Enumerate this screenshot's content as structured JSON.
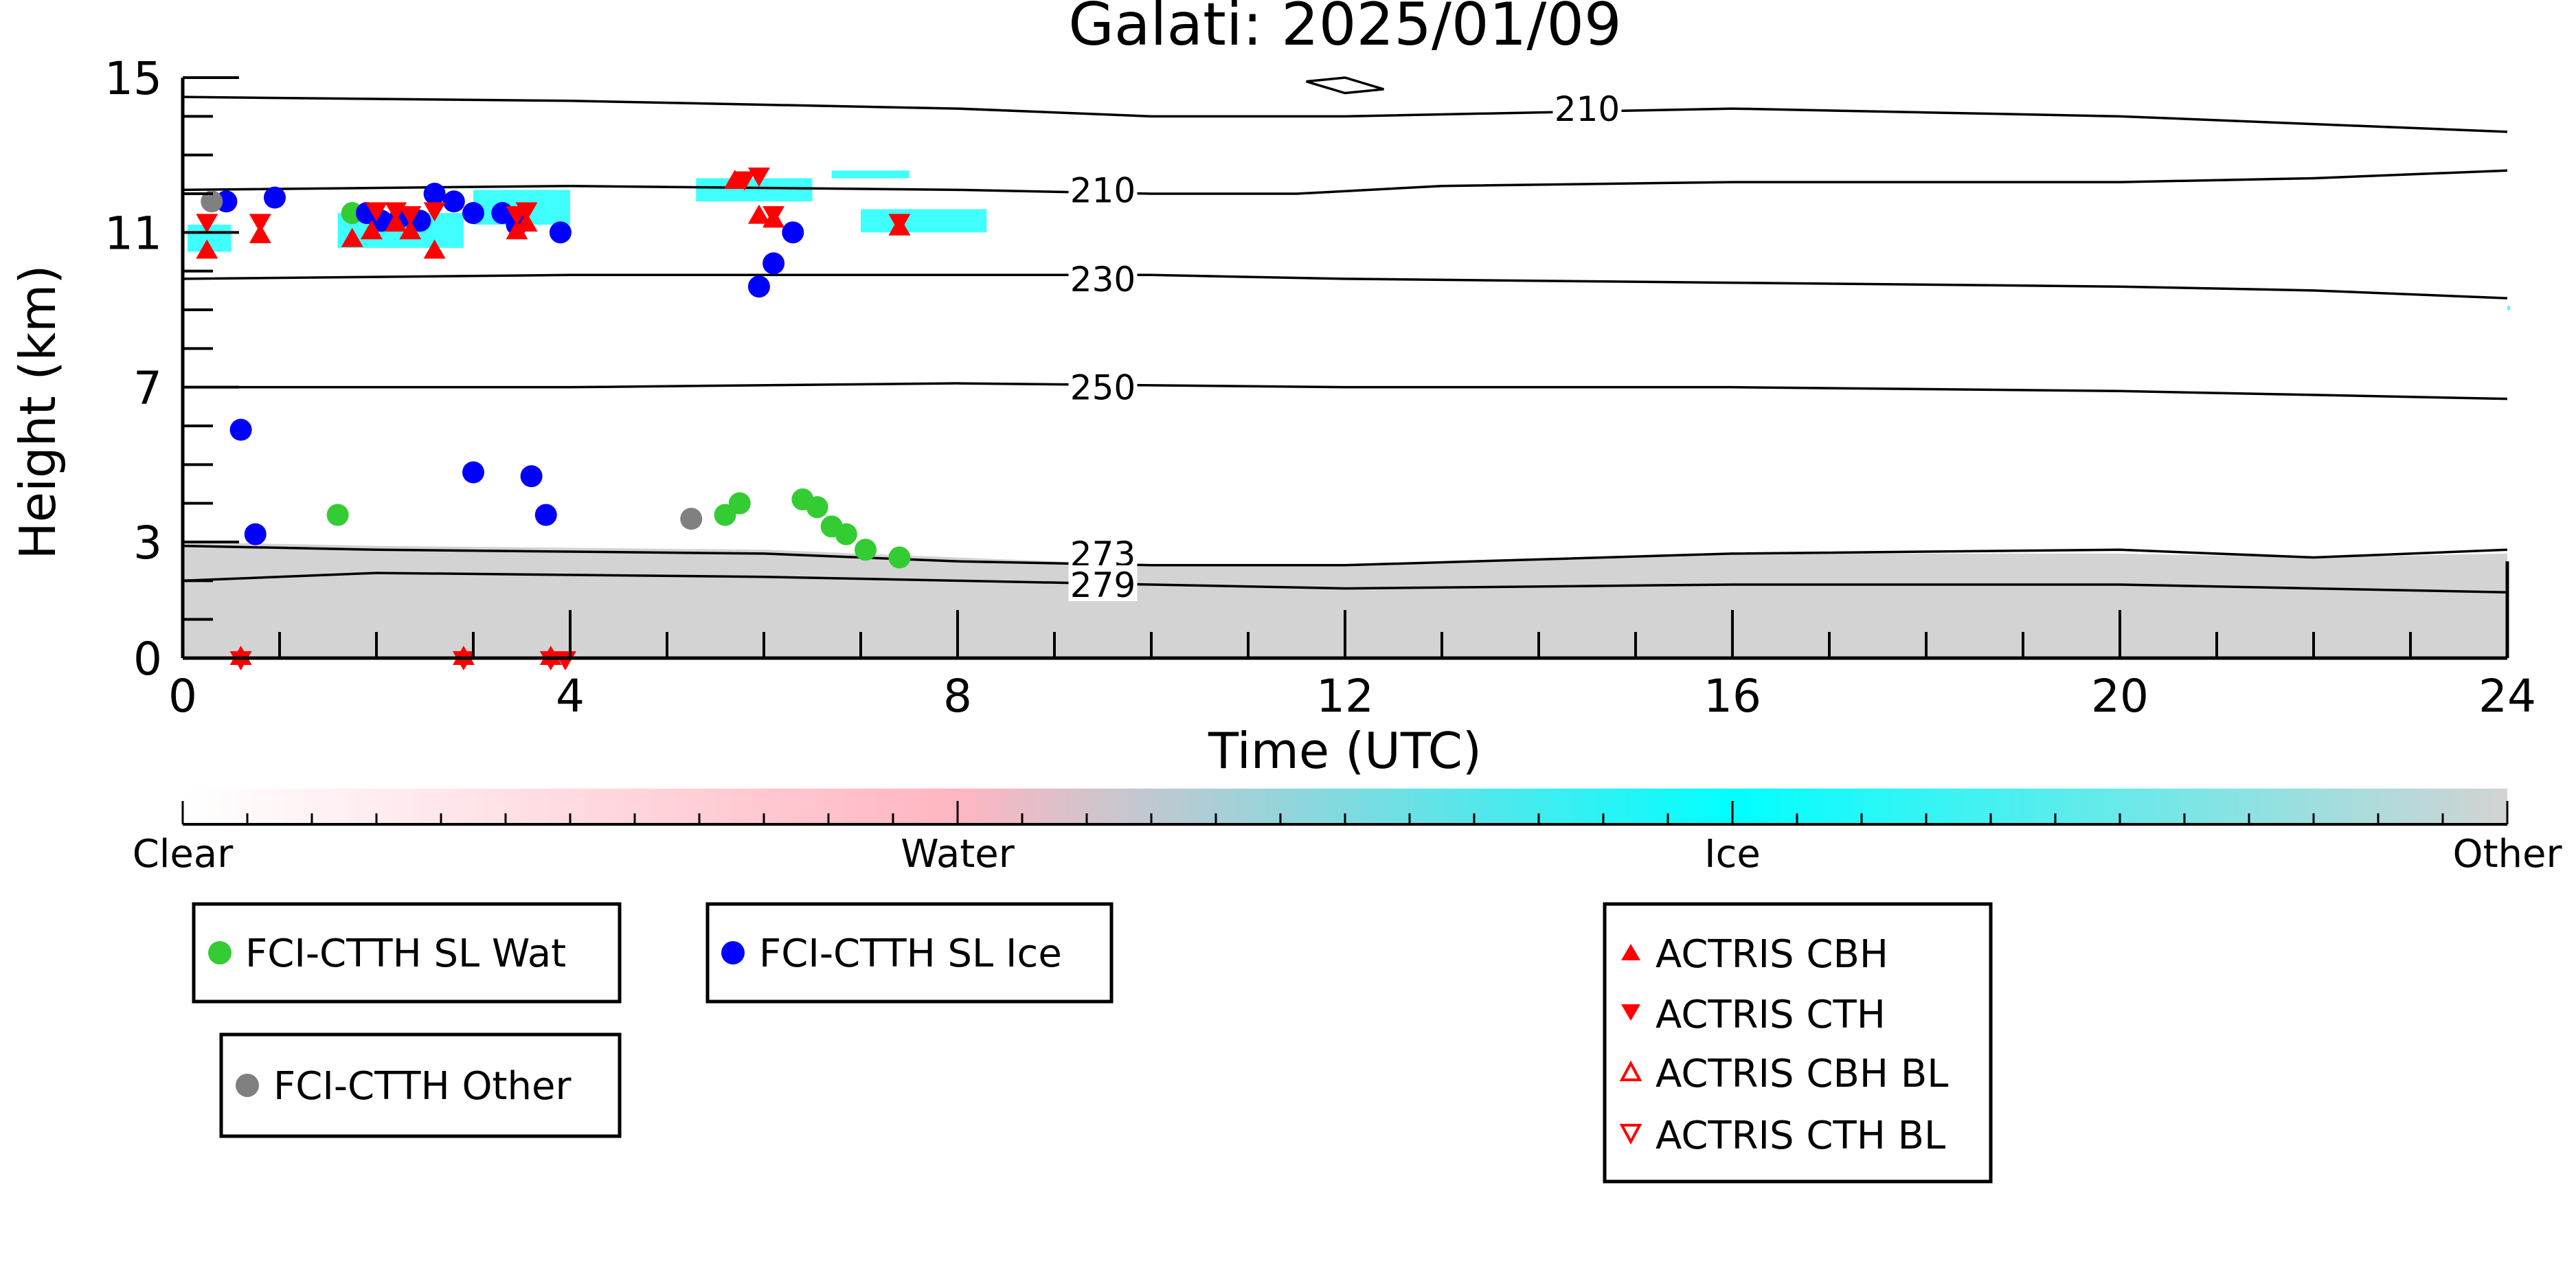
{
  "chart_data": {
    "type": "scatter",
    "title": "Galati: 2025/01/09",
    "xlabel": "Time (UTC)",
    "ylabel": "Height (km)",
    "xlim": [
      0,
      24
    ],
    "ylim": [
      0,
      15
    ],
    "x_ticks": [
      0,
      4,
      8,
      12,
      16,
      20,
      24
    ],
    "y_ticks": [
      0,
      3,
      7,
      11,
      15
    ],
    "grid": false,
    "contour_labels": [
      {
        "text": "210",
        "x": 14.5,
        "y": 14.2
      },
      {
        "text": "210",
        "x": 9.5,
        "y": 12.1
      },
      {
        "text": "230",
        "x": 9.5,
        "y": 9.8
      },
      {
        "text": "250",
        "x": 9.5,
        "y": 7.0
      },
      {
        "text": "273",
        "x": 9.5,
        "y": 2.7
      },
      {
        "text": "279",
        "x": 9.5,
        "y": 1.9
      }
    ],
    "contours": [
      {
        "level": 210,
        "points": [
          [
            0,
            14.5
          ],
          [
            4,
            14.4
          ],
          [
            8,
            14.2
          ],
          [
            10,
            14.0
          ],
          [
            12,
            14.0
          ],
          [
            14,
            14.1
          ],
          [
            16,
            14.2
          ],
          [
            18,
            14.1
          ],
          [
            20,
            14.0
          ],
          [
            22,
            13.8
          ],
          [
            24,
            13.6
          ]
        ]
      },
      {
        "level": 210,
        "points": [
          [
            0,
            12.1
          ],
          [
            4,
            12.2
          ],
          [
            8,
            12.1
          ],
          [
            10,
            12.0
          ],
          [
            11.5,
            12.0
          ],
          [
            13,
            12.2
          ],
          [
            16,
            12.3
          ],
          [
            20,
            12.3
          ],
          [
            22,
            12.4
          ],
          [
            24,
            12.6
          ]
        ]
      },
      {
        "level": 230,
        "points": [
          [
            0,
            9.8
          ],
          [
            4,
            9.9
          ],
          [
            8,
            9.9
          ],
          [
            10,
            9.9
          ],
          [
            12,
            9.8
          ],
          [
            16,
            9.7
          ],
          [
            20,
            9.6
          ],
          [
            22,
            9.5
          ],
          [
            24,
            9.3
          ]
        ]
      },
      {
        "level": 250,
        "points": [
          [
            0,
            7.0
          ],
          [
            4,
            7.0
          ],
          [
            8,
            7.1
          ],
          [
            12,
            7.0
          ],
          [
            16,
            7.0
          ],
          [
            20,
            6.9
          ],
          [
            22,
            6.8
          ],
          [
            24,
            6.7
          ]
        ]
      },
      {
        "level": 273,
        "points": [
          [
            0,
            2.9
          ],
          [
            2,
            2.8
          ],
          [
            6,
            2.7
          ],
          [
            8,
            2.5
          ],
          [
            10,
            2.4
          ],
          [
            12,
            2.4
          ],
          [
            16,
            2.7
          ],
          [
            20,
            2.8
          ],
          [
            22,
            2.6
          ],
          [
            24,
            2.8
          ]
        ]
      },
      {
        "level": 279,
        "points": [
          [
            0,
            2.0
          ],
          [
            2,
            2.2
          ],
          [
            6,
            2.1
          ],
          [
            8,
            2.0
          ],
          [
            10,
            1.9
          ],
          [
            12,
            1.8
          ],
          [
            16,
            1.9
          ],
          [
            20,
            1.9
          ],
          [
            22,
            1.8
          ],
          [
            24,
            1.7
          ]
        ]
      }
    ],
    "contour_small_loop": [
      [
        11.6,
        14.9
      ],
      [
        12.0,
        14.6
      ],
      [
        12.4,
        14.7
      ],
      [
        12.0,
        15.0
      ]
    ],
    "colorbar": {
      "labels": [
        "Clear",
        "Water",
        "Ice",
        "Other"
      ],
      "stops": [
        "#ffffff",
        "#ffb6c1",
        "#00ffff",
        "#d3d3d3"
      ]
    },
    "classification_fill": {
      "other_top": [
        [
          0,
          3.0
        ],
        [
          2,
          2.9
        ],
        [
          6,
          2.8
        ],
        [
          8,
          2.6
        ],
        [
          10,
          2.4
        ],
        [
          12,
          2.4
        ],
        [
          16,
          2.7
        ],
        [
          20,
          2.7
        ],
        [
          22,
          2.6
        ],
        [
          24,
          2.7
        ]
      ]
    },
    "ice_patches": [
      [
        0.05,
        10.5,
        0.5,
        11.2
      ],
      [
        1.6,
        10.6,
        2.9,
        11.5
      ],
      [
        3.0,
        11.2,
        4.0,
        12.1
      ],
      [
        5.3,
        11.8,
        6.5,
        12.4
      ],
      [
        6.7,
        12.4,
        7.5,
        12.6
      ],
      [
        7.0,
        11.0,
        8.3,
        11.6
      ],
      [
        24.0,
        9.0,
        24.0,
        9.1
      ]
    ],
    "series": [
      {
        "name": "FCI-CTTH SL Wat",
        "color": "#33cc33",
        "marker": "circle",
        "x": [
          1.6,
          1.75,
          5.6,
          5.75,
          6.4,
          6.55,
          6.7,
          6.85,
          7.05,
          7.4
        ],
        "y": [
          3.7,
          11.5,
          3.7,
          4.0,
          4.1,
          3.9,
          3.4,
          3.2,
          2.8,
          2.6
        ]
      },
      {
        "name": "FCI-CTTH SL Ice",
        "color": "#0000ff",
        "marker": "circle",
        "x": [
          0.45,
          0.95,
          0.6,
          0.75,
          1.9,
          2.05,
          2.25,
          2.45,
          2.6,
          2.8,
          3.0,
          3.3,
          3.45,
          3.9,
          3.0,
          3.6,
          3.75,
          5.95,
          6.1,
          6.3
        ],
        "y": [
          11.8,
          11.9,
          5.9,
          3.2,
          11.5,
          11.3,
          11.4,
          11.3,
          12.0,
          11.8,
          11.5,
          11.5,
          11.2,
          11.0,
          4.8,
          4.7,
          3.7,
          9.6,
          10.2,
          11.0
        ]
      },
      {
        "name": "FCI-CTTH Other",
        "color": "#808080",
        "marker": "circle",
        "x": [
          0.3,
          5.25
        ],
        "y": [
          11.8,
          3.6
        ]
      },
      {
        "name": "ACTRIS CBH",
        "color": "#ff0000",
        "marker": "triangle-up",
        "x": [
          0.25,
          0.8,
          1.75,
          1.95,
          2.2,
          2.35,
          2.6,
          3.45,
          3.55,
          5.7,
          5.95,
          6.1,
          7.4,
          0.6,
          2.9,
          3.8
        ],
        "y": [
          10.5,
          10.9,
          10.8,
          11.0,
          11.2,
          11.0,
          10.5,
          11.0,
          11.2,
          12.3,
          11.4,
          11.3,
          11.1,
          0.0,
          0.0,
          0.0
        ]
      },
      {
        "name": "ACTRIS CTH",
        "color": "#ff0000",
        "marker": "triangle-down",
        "x": [
          0.25,
          0.8,
          2.0,
          2.2,
          2.35,
          2.6,
          3.45,
          3.55,
          5.8,
          5.95,
          6.1,
          7.4,
          0.6,
          2.9,
          3.8,
          3.95
        ],
        "y": [
          11.3,
          11.3,
          11.6,
          11.6,
          11.5,
          11.6,
          11.5,
          11.6,
          12.4,
          12.5,
          11.5,
          11.3,
          0.0,
          0.0,
          0.0,
          0.0
        ]
      },
      {
        "name": "ACTRIS CBH BL",
        "color": "#ff0000",
        "marker": "triangle-up-open",
        "x": [],
        "y": []
      },
      {
        "name": "ACTRIS CTH BL",
        "color": "#ff0000",
        "marker": "triangle-down-open",
        "x": [],
        "y": []
      }
    ]
  }
}
